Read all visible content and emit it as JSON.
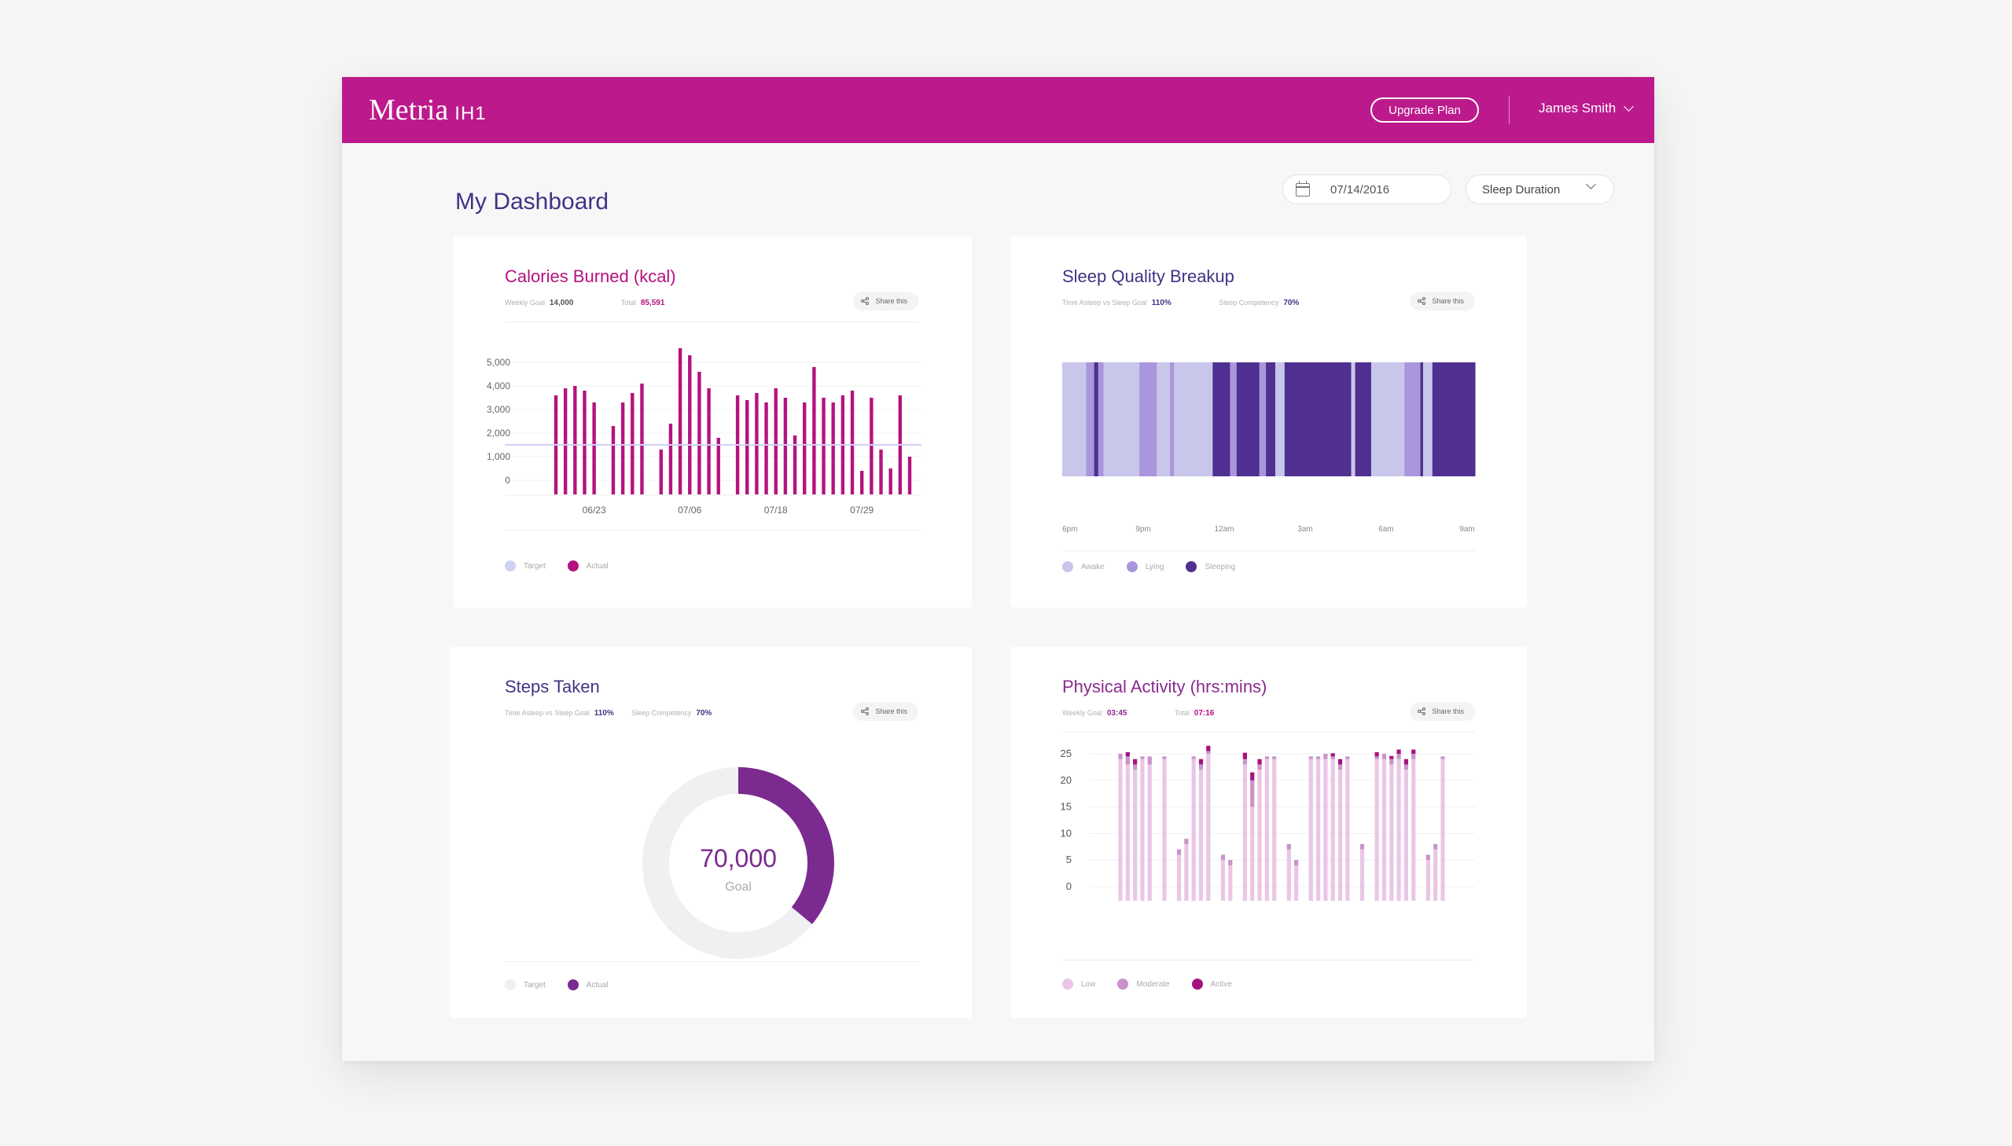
{
  "header": {
    "brand": "Metria",
    "brand_suffix": "IH1",
    "upgrade_label": "Upgrade Plan",
    "user_name": "James Smith",
    "bg_color": "#bc1a8c"
  },
  "page": {
    "title": "My Dashboard",
    "date_value": "07/14/2016",
    "metric_select": "Sleep Duration"
  },
  "share_label": "Share this",
  "calories": {
    "title": "Calories Burned  (kcal)",
    "meta1_label": "Weekly Goal",
    "meta1_value": "14,000",
    "meta2_label": "Total",
    "meta2_value": "85,591",
    "legend": [
      "Target",
      "Actual"
    ],
    "legend_colors": [
      "#cfd2f3",
      "#b5127f"
    ]
  },
  "sleep": {
    "title": "Sleep Quality Breakup",
    "meta1_label": "Time Asleep vs Sleep Goal",
    "meta1_value": "110%",
    "meta2_label": "Sleep Competency",
    "meta2_value": "70%",
    "legend": [
      "Awake",
      "Lying",
      "Sleeping"
    ],
    "legend_colors": [
      "#c9c6ec",
      "#a996dc",
      "#4f2f8f"
    ]
  },
  "steps": {
    "title": "Steps Taken",
    "meta1_label": "Time Asleep vs Sleep Goal",
    "meta1_value": "110%",
    "meta2_label": "Sleep Competency",
    "meta2_value": "70%",
    "center_value": "70,000",
    "center_label": "Goal",
    "legend": [
      "Target",
      "Actual"
    ],
    "legend_colors": [
      "#f0f0f2",
      "#7b2a8f"
    ]
  },
  "activity": {
    "title": "Physical Activity  (hrs:mins)",
    "meta1_label": "Weekly Goal",
    "meta1_value": "03:45",
    "meta2_label": "Total",
    "meta2_value": "07:16",
    "legend": [
      "Low",
      "Moderate",
      "Active"
    ],
    "legend_colors": [
      "#eac6e6",
      "#c993c9",
      "#a5127e"
    ]
  },
  "chart_data": [
    {
      "type": "bar",
      "title": "Calories Burned  (kcal)",
      "y_ticks": [
        "5,000",
        "4,000",
        "3,000",
        "2,000",
        "1,000",
        "0"
      ],
      "ylim": [
        0,
        5500
      ],
      "x_tick_labels": [
        "06/23",
        "07/06",
        "07/18",
        "07/29"
      ],
      "x_tick_positions": [
        4,
        14,
        23,
        32
      ],
      "target": 1500,
      "values": [
        3600,
        3900,
        4000,
        3800,
        3300,
        0,
        2300,
        3300,
        3700,
        4100,
        0,
        1300,
        2400,
        5600,
        5300,
        4600,
        3900,
        1800,
        0,
        3600,
        3400,
        3700,
        3300,
        3900,
        3500,
        1900,
        3300,
        4800,
        3500,
        3300,
        3600,
        3800,
        400,
        3500,
        1300,
        500,
        3600,
        1000
      ],
      "grid": true
    },
    {
      "type": "bar",
      "title": "Sleep Quality Breakup",
      "x_tick_labels": [
        "6pm",
        "9pm",
        "12am",
        "3am",
        "6am",
        "9am"
      ],
      "x_range": [
        18,
        33.5
      ],
      "states": [
        "Awake",
        "Lying",
        "Sleeping"
      ],
      "segments": [
        {
          "state": "Awake",
          "start": 18.0,
          "end": 18.9
        },
        {
          "state": "Lying",
          "start": 18.9,
          "end": 19.2
        },
        {
          "state": "Sleeping",
          "start": 19.2,
          "end": 19.35
        },
        {
          "state": "Lying",
          "start": 19.35,
          "end": 19.55
        },
        {
          "state": "Awake",
          "start": 19.55,
          "end": 20.9
        },
        {
          "state": "Lying",
          "start": 20.9,
          "end": 21.55
        },
        {
          "state": "Awake",
          "start": 21.55,
          "end": 22.05
        },
        {
          "state": "Lying",
          "start": 22.05,
          "end": 22.2
        },
        {
          "state": "Awake",
          "start": 22.2,
          "end": 23.65
        },
        {
          "state": "Sleeping",
          "start": 23.65,
          "end": 24.3
        },
        {
          "state": "Lying",
          "start": 24.3,
          "end": 24.55
        },
        {
          "state": "Sleeping",
          "start": 24.55,
          "end": 25.4
        },
        {
          "state": "Lying",
          "start": 25.4,
          "end": 25.65
        },
        {
          "state": "Sleeping",
          "start": 25.65,
          "end": 26.0
        },
        {
          "state": "Awake",
          "start": 26.0,
          "end": 26.35
        },
        {
          "state": "Sleeping",
          "start": 26.35,
          "end": 28.85
        },
        {
          "state": "Awake",
          "start": 28.85,
          "end": 29.0
        },
        {
          "state": "Sleeping",
          "start": 29.0,
          "end": 29.6
        },
        {
          "state": "Awake",
          "start": 29.6,
          "end": 30.85
        },
        {
          "state": "Lying",
          "start": 30.85,
          "end": 31.45
        },
        {
          "state": "Sleeping",
          "start": 31.45,
          "end": 31.55
        },
        {
          "state": "Awake",
          "start": 31.55,
          "end": 31.9
        },
        {
          "state": "Sleeping",
          "start": 31.9,
          "end": 33.5
        }
      ],
      "grid": false
    },
    {
      "type": "pie",
      "title": "Steps Taken",
      "categories": [
        "Actual",
        "Target"
      ],
      "values": [
        36,
        64
      ],
      "center_text": "70,000",
      "center_subtext": "Goal"
    },
    {
      "type": "bar",
      "title": "Physical Activity  (hrs:mins)",
      "stacked": true,
      "y_ticks": [
        "25",
        "20",
        "15",
        "10",
        "5",
        "0"
      ],
      "ylim": [
        0,
        25
      ],
      "series": [
        {
          "name": "Low",
          "values": [
            24,
            23,
            22,
            24,
            23,
            0,
            24,
            0,
            6,
            8,
            24,
            22,
            25,
            0,
            5,
            4,
            0,
            23,
            15,
            22,
            24,
            24,
            0,
            7,
            4,
            0,
            24,
            24,
            24,
            24,
            22,
            24,
            0,
            7,
            0,
            24,
            24,
            23,
            24,
            22,
            24,
            0,
            5,
            7,
            24
          ]
        },
        {
          "name": "Moderate",
          "values": [
            1,
            1.5,
            1,
            0.5,
            1.5,
            0,
            0.5,
            0,
            1,
            1,
            0.5,
            1,
            0.5,
            0,
            1,
            1,
            0,
            1,
            5,
            1,
            0.5,
            0.5,
            0,
            1,
            1,
            0,
            0.5,
            0.5,
            1,
            0.5,
            1,
            0.5,
            0,
            1,
            0,
            0.5,
            1,
            1,
            1,
            1,
            1,
            0,
            1,
            1,
            0.5
          ]
        },
        {
          "name": "Active",
          "values": [
            0,
            0.8,
            1,
            0,
            0,
            0,
            0,
            0,
            0,
            0,
            0,
            1,
            1,
            0,
            0,
            0,
            0,
            1.2,
            1.5,
            1,
            0,
            0,
            0,
            0,
            0,
            0,
            0,
            0,
            0,
            0.6,
            1,
            0,
            0,
            0,
            0,
            0.8,
            0,
            0.6,
            0.8,
            1,
            0.8,
            0,
            0,
            0,
            0
          ]
        }
      ],
      "grid": true
    }
  ]
}
